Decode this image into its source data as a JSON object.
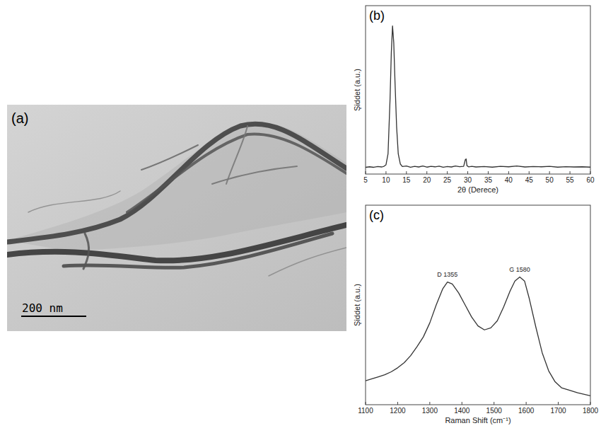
{
  "image": {
    "label": "(a)",
    "scale_bar": "200 nm"
  },
  "chart_data": [
    {
      "type": "line",
      "label": "(b)",
      "y_label": "Şiddet (a.u.)",
      "x_label": "2θ (Derece)",
      "xlim": [
        5,
        60
      ],
      "xticks": [
        5,
        10,
        15,
        20,
        25,
        30,
        35,
        40,
        45,
        50,
        55,
        60
      ],
      "ylim": [
        0,
        100
      ],
      "tick_labels": "x",
      "color": "#333333",
      "series": [
        {
          "color": "#333333",
          "x": [
            5,
            6,
            7,
            8,
            9,
            9.5,
            10,
            10.5,
            11,
            11.3,
            11.6,
            11.9,
            12.2,
            12.6,
            13,
            13.5,
            14,
            15,
            16,
            17,
            18,
            19,
            20,
            21,
            22,
            23,
            24,
            25,
            26,
            27,
            28,
            29,
            29.4,
            29.6,
            29.8,
            30.2,
            31,
            32,
            34,
            36,
            38,
            40,
            42,
            44,
            46,
            48,
            50,
            52,
            54,
            56,
            58,
            60
          ],
          "values": [
            4,
            4.3,
            4,
            4.5,
            4.2,
            4.6,
            5.5,
            12,
            45,
            72,
            88,
            78,
            55,
            28,
            12,
            6,
            4.5,
            4.8,
            4,
            4.6,
            4.2,
            4.8,
            4.1,
            4.6,
            4.3,
            4.7,
            4,
            4.5,
            4.2,
            4.8,
            4.4,
            4.6,
            8.5,
            9,
            5,
            4.3,
            4.6,
            4.2,
            4.5,
            4.1,
            4.6,
            4.3,
            4.8,
            4.2,
            4.5,
            4.3,
            4.6,
            4.1,
            4.4,
            4.2,
            4.3,
            4.1
          ]
        }
      ]
    },
    {
      "type": "line",
      "label": "(c)",
      "y_label": "Şiddet (a.u.)",
      "x_label": "Raman Shift (cm⁻¹)",
      "xlim": [
        1100,
        1800
      ],
      "xticks": [
        1100,
        1200,
        1300,
        1400,
        1500,
        1600,
        1700,
        1800
      ],
      "ylim": [
        0,
        100
      ],
      "tick_labels": "x",
      "color": "#333333",
      "annotations": [
        {
          "text": "D 1355",
          "x": 1355,
          "y": 61.5
        },
        {
          "text": "G 1580",
          "x": 1580,
          "y": 64
        }
      ],
      "series": [
        {
          "color": "#333333",
          "x": [
            1100,
            1120,
            1140,
            1160,
            1180,
            1200,
            1220,
            1240,
            1260,
            1280,
            1300,
            1320,
            1340,
            1355,
            1370,
            1390,
            1410,
            1430,
            1450,
            1470,
            1490,
            1510,
            1530,
            1550,
            1565,
            1580,
            1595,
            1610,
            1630,
            1650,
            1670,
            1690,
            1710,
            1730,
            1760,
            1800
          ],
          "values": [
            12,
            13,
            14,
            15,
            16.5,
            18.5,
            21,
            24.5,
            29,
            34,
            41,
            50,
            58,
            61.5,
            60.5,
            56,
            50,
            44,
            39.5,
            37.5,
            38.5,
            42,
            49,
            57,
            62,
            64,
            62,
            53,
            39,
            26,
            17,
            11.5,
            8.5,
            7.5,
            6,
            4.5
          ]
        }
      ]
    }
  ]
}
